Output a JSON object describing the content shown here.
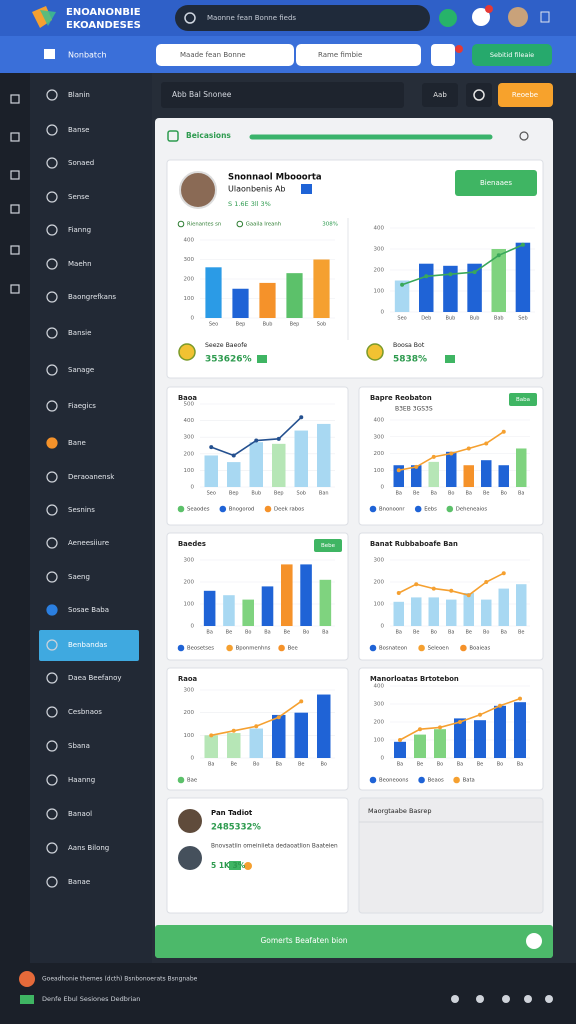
{
  "header": {
    "logo_line_1": "ENOANONBIE",
    "logo_line_2": "EKOANDESES",
    "search": "Maonne fean Bonne fieds",
    "nav_title": "Nonbatch",
    "filter_1": "Maade fean Bonne",
    "filter_2": "Rame fimbie",
    "action": "Sebitid fileaie"
  },
  "sidebar": [
    "Blanin",
    "Banse",
    "Sonaed",
    "Sense",
    "Fianng",
    "Maehn",
    "Baongrefkans",
    "Bansie",
    "Sanage",
    "Fiaegics",
    "Bane",
    "Deraoanensk",
    "Sesnins",
    "Aeneesiiure",
    "Saeng",
    "Sosae Baba",
    "Benbandas",
    "Daea Beefanoy",
    "Cesbnaos",
    "Sbana",
    "Haanng",
    "Banaol",
    "Aans Bilong",
    "Banae"
  ],
  "toolbar": {
    "search": "Abb Bal Snonee",
    "button_1": "Aab",
    "button_2": "Reoebe"
  },
  "panel": {
    "title": "Beicasions"
  },
  "profile": {
    "name": "Snonnaol Mbooorta",
    "role": "Ulaonbenis Ab",
    "stat": "S 1.6E 3ll 3%",
    "button": "Bienaaes"
  },
  "bottom_left": {
    "name": "Pan Tadiot",
    "value": "2485332%",
    "description": "Bnovsatiin omeiniieta dedaoatlion Baateien",
    "stat": "5 1K 3%"
  },
  "bottom_right": {
    "title": "Maorgtaabe Basrep"
  },
  "footer_bar": "Gomerts Beafaten bion",
  "status": {
    "line_1": "Goeadhonie themes (dcth) Bsnbonoerats Bsngnabe",
    "line_2": "Denfe Ebul Sesiones Dedbrian"
  },
  "chart_data": [
    {
      "type": "bar",
      "legend": [
        {
          "label": "Rienantes sn",
          "color": "#2e7d32"
        },
        {
          "label": "Gaaila Ireanh",
          "color": "#2e7d32"
        }
      ],
      "note": "308%",
      "categories": [
        "Seo",
        "Bep",
        "Bub",
        "Bep",
        "Sob"
      ],
      "values": [
        260,
        150,
        180,
        230,
        300
      ],
      "colors": [
        "#2b9be6",
        "#1f63d6",
        "#f5922a",
        "#5cc16a",
        "#f5a030"
      ],
      "ylim": [
        0,
        400
      ],
      "yticks": [
        0,
        100,
        200,
        300,
        400
      ],
      "grid": true,
      "summary_label": "Seeze Baeofe",
      "summary_value": "353626%"
    },
    {
      "type": "bar",
      "categories": [
        "Seo",
        "Deb",
        "Bub",
        "Bub",
        "Bab",
        "Seb"
      ],
      "values": [
        150,
        230,
        220,
        230,
        300,
        330
      ],
      "colors": [
        "#a8d8f2",
        "#1f63d6",
        "#1f63d6",
        "#1f63d6",
        "#7fd37f",
        "#1f63d6"
      ],
      "line_values": [
        130,
        170,
        180,
        190,
        270,
        320
      ],
      "line_color": "#3aa85a",
      "ylim": [
        0,
        400
      ],
      "yticks": [
        0,
        100,
        200,
        300,
        400
      ],
      "grid": true,
      "summary_label": "Boosa Bot",
      "summary_value": "5838%"
    },
    {
      "type": "bar",
      "title": "Baoa",
      "categories": [
        "Seo",
        "Bep",
        "Bub",
        "Bep",
        "Sob",
        "Ban"
      ],
      "values": [
        190,
        150,
        270,
        260,
        340,
        380
      ],
      "colors": [
        "#a8d8f2",
        "#a8d8f2",
        "#a8d8f2",
        "#b6e6b6",
        "#a8d8f2",
        "#a8d8f2"
      ],
      "line_values": [
        240,
        190,
        280,
        290,
        420,
        null
      ],
      "line_color": "#24508f",
      "legend": [
        {
          "label": "Seaodes",
          "color": "#5cc16a"
        },
        {
          "label": "Bnogorod",
          "color": "#1f63d6"
        },
        {
          "label": "Deek rabos",
          "color": "#f5922a"
        }
      ],
      "ylim": [
        0,
        500
      ],
      "yticks": [
        0,
        100,
        200,
        300,
        400,
        500
      ],
      "grid": true
    },
    {
      "type": "bar",
      "title": "Bapre Reobaton",
      "subtitle": "B3EB 3GS3S",
      "button": "Baba",
      "categories": [
        "Ba",
        "Be",
        "Ba",
        "Bo",
        "Ba",
        "Be",
        "Bo",
        "Ba"
      ],
      "values": [
        130,
        130,
        150,
        210,
        130,
        160,
        130,
        230
      ],
      "colors": [
        "#1f63d6",
        "#1f63d6",
        "#b6e6b6",
        "#1f63d6",
        "#f5922a",
        "#1f63d6",
        "#1f63d6",
        "#7fd37f"
      ],
      "line_values": [
        100,
        120,
        180,
        200,
        230,
        260,
        330,
        null
      ],
      "line_color": "#f5a030",
      "legend": [
        {
          "label": "Bnonoonr",
          "color": "#1f63d6"
        },
        {
          "label": "Eebs",
          "color": "#1f63d6"
        },
        {
          "label": "Deheneaios",
          "color": "#5cc16a"
        }
      ],
      "ylim": [
        0,
        400
      ],
      "yticks": [
        0,
        100,
        200,
        300,
        400
      ],
      "grid": true
    },
    {
      "type": "bar",
      "title": "Baedes",
      "button": "Bebe",
      "categories": [
        "Ba",
        "Be",
        "Bo",
        "Ba",
        "Be",
        "Bo",
        "Ba"
      ],
      "values": [
        160,
        140,
        120,
        180,
        280,
        280,
        210
      ],
      "colors": [
        "#1f63d6",
        "#a8d8f2",
        "#7fd37f",
        "#1f63d6",
        "#f5922a",
        "#1f63d6",
        "#7fd37f"
      ],
      "legend": [
        {
          "label": "Beosetses",
          "color": "#1f63d6"
        },
        {
          "label": "Bponmenhns",
          "color": "#f5a030"
        },
        {
          "label": "Bee",
          "color": "#f5922a"
        }
      ],
      "ylim": [
        0,
        300
      ],
      "yticks": [
        0,
        100,
        200,
        300
      ],
      "grid": true
    },
    {
      "type": "bar",
      "title": "Banat Rubbaboafe Ban",
      "categories": [
        "Ba",
        "Be",
        "Bo",
        "Ba",
        "Be",
        "Bo",
        "Ba",
        "Be"
      ],
      "values": [
        110,
        130,
        130,
        120,
        150,
        120,
        170,
        190
      ],
      "colors": [
        "#a8d8f2",
        "#a8d8f2",
        "#a8d8f2",
        "#a8d8f2",
        "#a8d8f2",
        "#a8d8f2",
        "#a8d8f2",
        "#a8d8f2"
      ],
      "line_values": [
        150,
        190,
        170,
        160,
        140,
        200,
        240,
        null
      ],
      "line_color": "#f5a030",
      "legend": [
        {
          "label": "Bosnateon",
          "color": "#1f63d6"
        },
        {
          "label": "Seleoen",
          "color": "#f5a030"
        },
        {
          "label": "Boaieas",
          "color": "#f5922a"
        }
      ],
      "ylim": [
        0,
        300
      ],
      "yticks": [
        0,
        100,
        200,
        300
      ],
      "grid": true
    },
    {
      "type": "bar",
      "title": "Raoa",
      "categories": [
        "Ba",
        "Be",
        "Bo",
        "Ba",
        "Be",
        "Bo"
      ],
      "values": [
        100,
        110,
        130,
        190,
        200,
        280
      ],
      "colors": [
        "#b6e6b6",
        "#b6e6b6",
        "#a8d8f2",
        "#1f63d6",
        "#1f63d6",
        "#1f63d6"
      ],
      "line_values": [
        100,
        120,
        140,
        180,
        250,
        null
      ],
      "line_color": "#f5a030",
      "legend": [
        {
          "label": "Bae",
          "color": "#5cc16a"
        }
      ],
      "ylim": [
        0,
        300
      ],
      "yticks": [
        0,
        100,
        200,
        300
      ],
      "grid": true
    },
    {
      "type": "bar",
      "title": "Manorloatas Brtotebon",
      "categories": [
        "Ba",
        "Be",
        "Bo",
        "Ba",
        "Be",
        "Bo",
        "Ba"
      ],
      "values": [
        90,
        130,
        160,
        220,
        210,
        290,
        310
      ],
      "colors": [
        "#1f63d6",
        "#7fd37f",
        "#7fd37f",
        "#1f63d6",
        "#1f63d6",
        "#1f63d6",
        "#1f63d6"
      ],
      "line_values": [
        100,
        160,
        170,
        200,
        240,
        290,
        330
      ],
      "line_color": "#f5a030",
      "legend": [
        {
          "label": "Beoneoons",
          "color": "#1f63d6"
        },
        {
          "label": "Beaos",
          "color": "#1f63d6"
        },
        {
          "label": "Bata",
          "color": "#f5a030"
        }
      ],
      "ylim": [
        0,
        400
      ],
      "yticks": [
        0,
        100,
        200,
        300,
        400
      ],
      "grid": true
    }
  ]
}
